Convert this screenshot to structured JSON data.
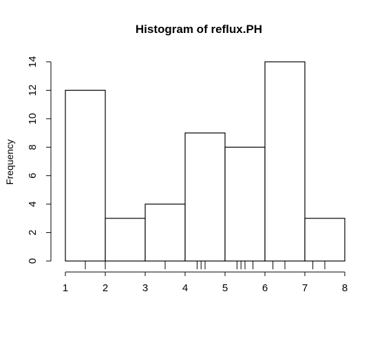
{
  "chart_data": {
    "type": "bar",
    "title": "Histogram of reflux.PH",
    "xlabel": "",
    "ylabel": "Frequency",
    "bins": [
      {
        "start": 1,
        "end": 2,
        "count": 12
      },
      {
        "start": 2,
        "end": 3,
        "count": 3
      },
      {
        "start": 3,
        "end": 4,
        "count": 4
      },
      {
        "start": 4,
        "end": 5,
        "count": 9
      },
      {
        "start": 5,
        "end": 6,
        "count": 8
      },
      {
        "start": 6,
        "end": 7,
        "count": 14
      },
      {
        "start": 7,
        "end": 8,
        "count": 3
      }
    ],
    "xlim": [
      1,
      8
    ],
    "ylim": [
      0,
      14
    ],
    "x_ticks": [
      1,
      2,
      3,
      4,
      5,
      6,
      7,
      8
    ],
    "y_ticks": [
      0,
      2,
      4,
      6,
      8,
      10,
      12,
      14
    ],
    "rug": [
      1.5,
      2.0,
      3.5,
      4.3,
      4.4,
      4.5,
      5.3,
      5.4,
      5.5,
      5.7,
      6.2,
      6.5,
      7.2,
      7.5
    ],
    "grid": false,
    "legend": "none",
    "bar_fill": "#ffffff",
    "stroke": "#000000"
  }
}
